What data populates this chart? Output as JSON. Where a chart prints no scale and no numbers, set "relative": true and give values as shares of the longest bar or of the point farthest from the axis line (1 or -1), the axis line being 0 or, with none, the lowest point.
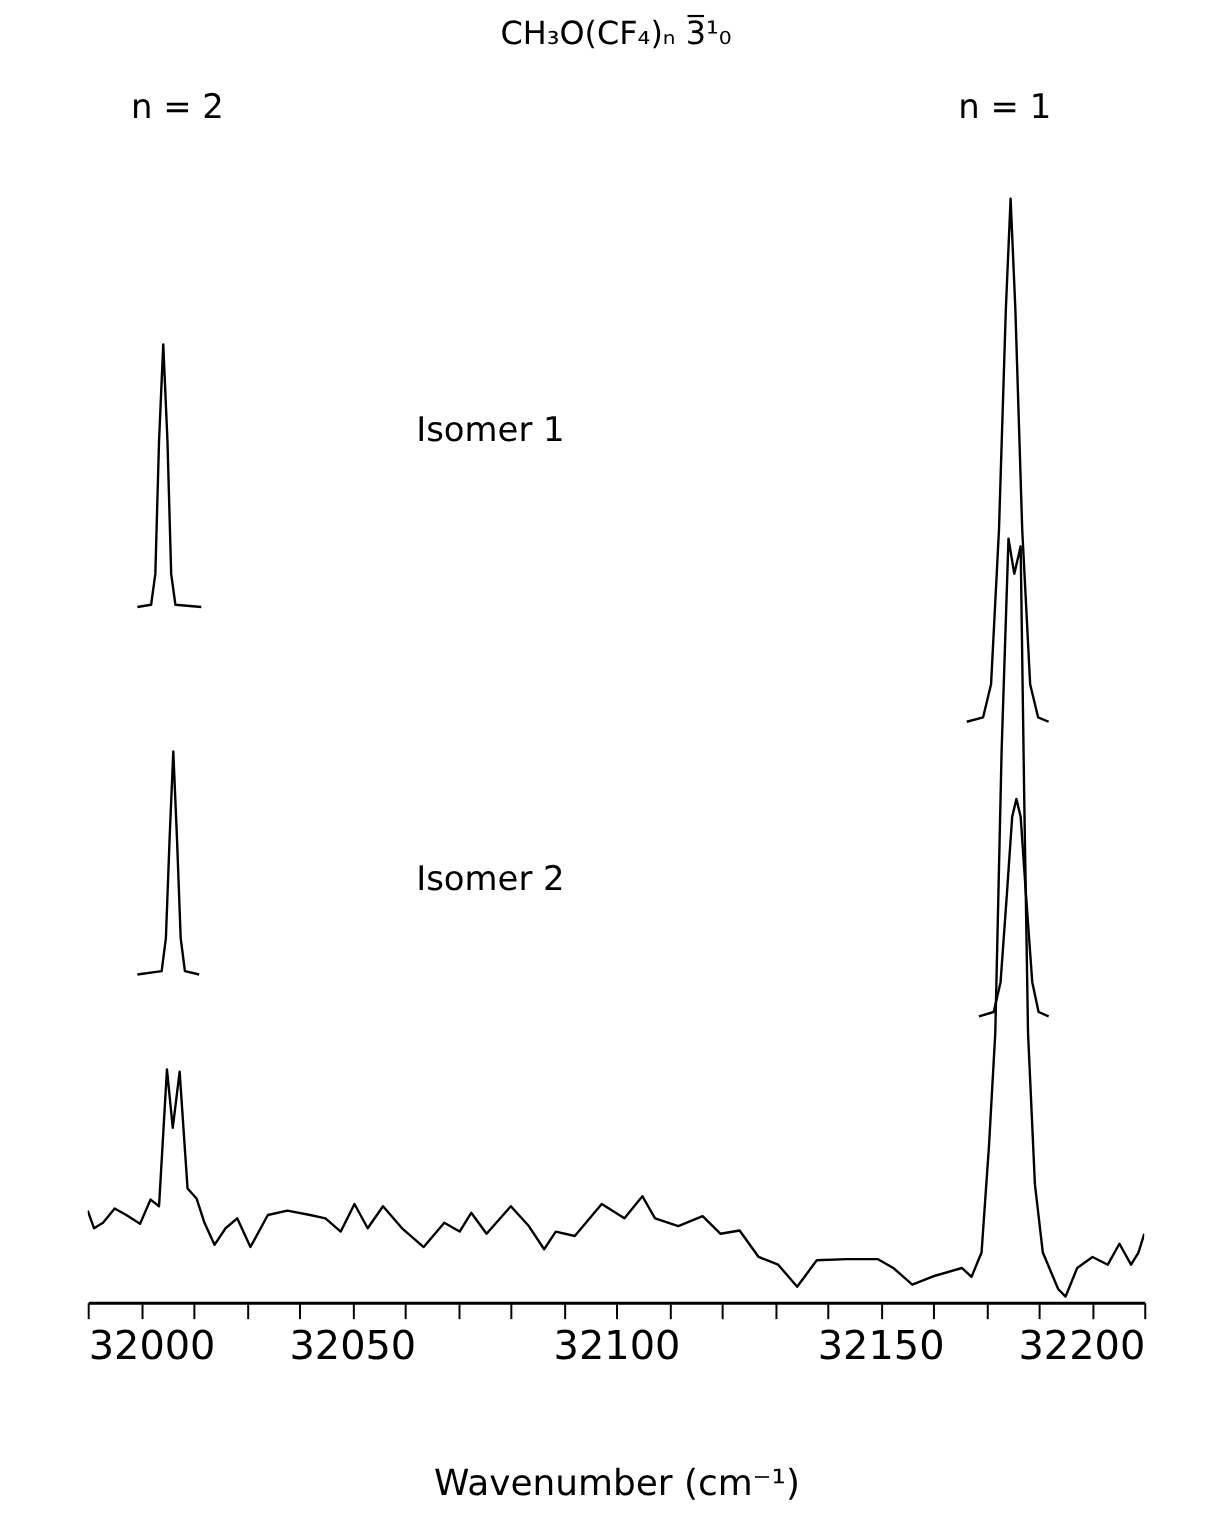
{
  "chart_data": {
    "type": "line",
    "relative": true,
    "title": "CH₃O(CF₄)ₙ 3̅¹₀",
    "xlabel": "Wavenumber (cm⁻¹)",
    "xlim": [
      32000,
      32200
    ],
    "xticks": [
      32000,
      {
        "value": 32010,
        "label": null
      },
      {
        "value": 32020,
        "label": null
      },
      {
        "value": 32030,
        "label": null
      },
      {
        "value": 32040,
        "label": null
      },
      32050,
      {
        "value": 32060,
        "label": null
      },
      {
        "value": 32070,
        "label": null
      },
      {
        "value": 32080,
        "label": null
      },
      {
        "value": 32090,
        "label": null
      },
      32100,
      {
        "value": 32110,
        "label": null
      },
      {
        "value": 32120,
        "label": null
      },
      {
        "value": 32130,
        "label": null
      },
      {
        "value": 32140,
        "label": null
      },
      32150,
      {
        "value": 32160,
        "label": null
      },
      {
        "value": 32170,
        "label": null
      },
      {
        "value": 32180,
        "label": null
      },
      {
        "value": 32190,
        "label": null
      },
      32200
    ],
    "grid": false,
    "tick_labels": "x",
    "line_style": "solid",
    "marker": "none",
    "series": [
      {
        "color": "#000000",
        "x": [
          32009.4,
          32012.0,
          32012.8,
          32013.5,
          32014.3,
          32015.1,
          32015.8,
          32016.6,
          32021.5
        ],
        "values": [
          0.63,
          0.632,
          0.66,
          0.78,
          0.868,
          0.78,
          0.66,
          0.632,
          0.63
        ]
      },
      {
        "color": "#000000",
        "x": [
          32166.4,
          32169.5,
          32171.0,
          32172.5,
          32173.8,
          32174.7,
          32175.6,
          32176.9,
          32178.4,
          32179.9,
          32181.9
        ],
        "values": [
          0.526,
          0.53,
          0.56,
          0.7,
          0.9,
          1.0,
          0.9,
          0.7,
          0.56,
          0.53,
          0.526
        ]
      },
      {
        "color": "#000000",
        "x": [
          32009.4,
          32014.0,
          32014.8,
          32015.5,
          32016.2,
          32016.9,
          32017.6,
          32018.4,
          32021.1
        ],
        "values": [
          0.297,
          0.3,
          0.33,
          0.42,
          0.499,
          0.42,
          0.33,
          0.3,
          0.297
        ]
      },
      {
        "color": "#000000",
        "x": [
          32168.7,
          32171.5,
          32172.8,
          32174.0,
          32175.0,
          32175.8,
          32176.6,
          32177.6,
          32178.8,
          32180.0,
          32181.9
        ],
        "values": [
          0.259,
          0.263,
          0.29,
          0.37,
          0.44,
          0.456,
          0.44,
          0.37,
          0.29,
          0.263,
          0.259
        ]
      },
      {
        "color": "#000000",
        "x": [
          32000,
          32001.2,
          32002.9,
          32005.1,
          32007.3,
          32009.9,
          32011.9,
          32013.5,
          32015.0,
          32016.1,
          32017.4,
          32018.9,
          32020.6,
          32022.1,
          32024.0,
          32026.1,
          32028.3,
          32030.8,
          32034.1,
          32037.8,
          32042.1,
          32045.0,
          32047.9,
          32050.5,
          32053.0,
          32055.9,
          32059.5,
          32063.6,
          32067.5,
          32070.4,
          32072.6,
          32075.5,
          32080.1,
          32083.5,
          32086.4,
          32088.6,
          32092.2,
          32097.3,
          32101.6,
          32105.0,
          32107.4,
          32111.8,
          32116.4,
          32119.8,
          32123.4,
          32127.0,
          32130.7,
          32134.3,
          32138.0,
          32143.7,
          32149.6,
          32152.5,
          32156.1,
          32160.4,
          32165.5,
          32167.3,
          32169.2,
          32170.6,
          32171.8,
          32173.0,
          32174.3,
          32175.4,
          32176.6,
          32177.3,
          32178.0,
          32179.3,
          32180.8,
          32183.7,
          32185.1,
          32187.3,
          32190.2,
          32193.1,
          32195.3,
          32197.5,
          32198.9,
          32200
        ],
        "values": [
          0.083,
          0.067,
          0.072,
          0.085,
          0.079,
          0.071,
          0.093,
          0.087,
          0.211,
          0.158,
          0.209,
          0.103,
          0.094,
          0.072,
          0.052,
          0.067,
          0.076,
          0.05,
          0.079,
          0.083,
          0.079,
          0.076,
          0.064,
          0.089,
          0.067,
          0.087,
          0.067,
          0.05,
          0.072,
          0.064,
          0.081,
          0.062,
          0.087,
          0.069,
          0.048,
          0.064,
          0.06,
          0.089,
          0.076,
          0.096,
          0.076,
          0.069,
          0.078,
          0.062,
          0.065,
          0.041,
          0.034,
          0.014,
          0.038,
          0.039,
          0.039,
          0.031,
          0.016,
          0.024,
          0.031,
          0.023,
          0.045,
          0.141,
          0.244,
          0.5,
          0.692,
          0.66,
          0.685,
          0.45,
          0.244,
          0.107,
          0.045,
          0.012,
          0.005,
          0.031,
          0.041,
          0.034,
          0.053,
          0.034,
          0.045,
          0.062
        ]
      }
    ],
    "annotations": [
      "n = 2",
      "n = 1",
      "Isomer 1",
      "Isomer 2"
    ]
  }
}
